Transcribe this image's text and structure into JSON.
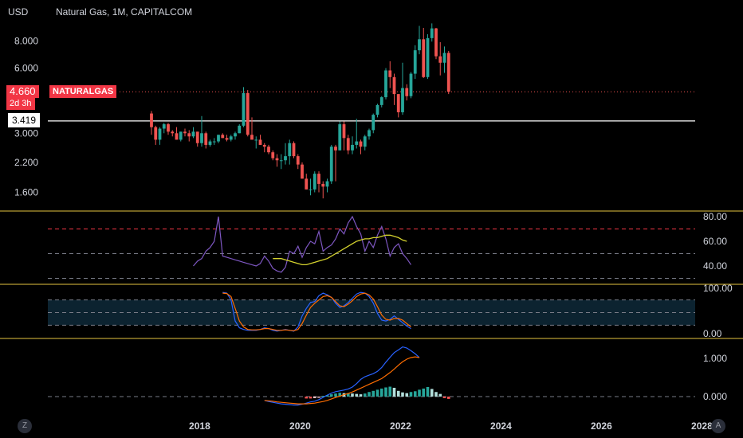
{
  "header": {
    "currency": "USD",
    "title": "Natural Gas, 1M, CAPITALCOM"
  },
  "price_axis": {
    "ticks": [
      "8.000",
      "6.000",
      "3.000",
      "2.200",
      "1.600"
    ],
    "last_price": "4.660",
    "countdown": "2d 3h",
    "symbol_tag": "NATURALGAS",
    "hline_price": "3.419"
  },
  "rsi_axis": {
    "ticks": [
      "80.00",
      "60.00",
      "40.00"
    ]
  },
  "stoch_axis": {
    "ticks": [
      "100.00",
      "0.00"
    ]
  },
  "macd_axis": {
    "ticks": [
      "1.000",
      "0.000"
    ]
  },
  "time_axis": {
    "ticks": [
      "2018",
      "2020",
      "2022",
      "2024",
      "2026",
      "2028"
    ]
  },
  "buttons": {
    "left": "Z",
    "right": "A"
  },
  "colors": {
    "up": "#26a69a",
    "down": "#ef5350",
    "rsi": "#7e57c2",
    "rsi_ma": "#d4d22e",
    "stoch_k": "#2962ff",
    "stoch_d": "#ff6d00",
    "separator": "#e4c441"
  },
  "chart_data": [
    {
      "type": "candlestick",
      "title": "Natural Gas, 1M, CAPITALCOM",
      "ylabel": "USD",
      "scale": "log",
      "x": [
        "2017-01",
        "2017-02",
        "2017-03",
        "2017-04",
        "2017-05",
        "2017-06",
        "2017-07",
        "2017-08",
        "2017-09",
        "2017-10",
        "2017-11",
        "2017-12",
        "2018-01",
        "2018-02",
        "2018-03",
        "2018-04",
        "2018-05",
        "2018-06",
        "2018-07",
        "2018-08",
        "2018-09",
        "2018-10",
        "2018-11",
        "2018-12",
        "2019-01",
        "2019-02",
        "2019-03",
        "2019-04",
        "2019-05",
        "2019-06",
        "2019-07",
        "2019-08",
        "2019-09",
        "2019-10",
        "2019-11",
        "2019-12",
        "2020-01",
        "2020-02",
        "2020-03",
        "2020-04",
        "2020-05",
        "2020-06",
        "2020-07",
        "2020-08",
        "2020-09",
        "2020-10",
        "2020-11",
        "2020-12",
        "2021-01",
        "2021-02",
        "2021-03",
        "2021-04",
        "2021-05",
        "2021-06",
        "2021-07",
        "2021-08",
        "2021-09",
        "2021-10",
        "2021-11",
        "2021-12",
        "2022-01",
        "2022-02",
        "2022-03",
        "2022-04",
        "2022-05",
        "2022-06",
        "2022-07",
        "2022-08",
        "2022-09",
        "2022-10",
        "2022-11",
        "2022-12"
      ],
      "ohlc": [
        [
          3.7,
          3.8,
          2.95,
          3.2
        ],
        [
          3.2,
          3.25,
          2.65,
          2.8
        ],
        [
          2.8,
          3.2,
          2.65,
          3.15
        ],
        [
          3.15,
          3.35,
          3.0,
          3.3
        ],
        [
          3.3,
          3.35,
          2.95,
          3.05
        ],
        [
          3.05,
          3.1,
          2.9,
          3.0
        ],
        [
          3.0,
          3.2,
          2.8,
          2.8
        ],
        [
          2.8,
          3.05,
          2.75,
          3.05
        ],
        [
          3.05,
          3.15,
          2.9,
          3.0
        ],
        [
          3.0,
          3.1,
          2.75,
          2.9
        ],
        [
          2.9,
          3.2,
          2.85,
          3.05
        ],
        [
          3.05,
          3.05,
          2.6,
          2.7
        ],
        [
          2.7,
          3.6,
          2.6,
          3.0
        ],
        [
          3.0,
          3.05,
          2.55,
          2.65
        ],
        [
          2.65,
          2.8,
          2.6,
          2.75
        ],
        [
          2.75,
          2.85,
          2.65,
          2.75
        ],
        [
          2.75,
          2.95,
          2.7,
          2.95
        ],
        [
          2.95,
          3.0,
          2.85,
          2.85
        ],
        [
          2.85,
          2.95,
          2.75,
          2.8
        ],
        [
          2.8,
          2.95,
          2.75,
          2.9
        ],
        [
          2.9,
          3.05,
          2.8,
          3.0
        ],
        [
          3.0,
          3.3,
          3.0,
          3.25
        ],
        [
          3.25,
          4.9,
          3.2,
          4.6
        ],
        [
          4.6,
          4.75,
          2.9,
          2.95
        ],
        [
          2.95,
          3.55,
          2.85,
          2.8
        ],
        [
          2.8,
          2.9,
          2.55,
          2.8
        ],
        [
          2.8,
          2.95,
          2.65,
          2.65
        ],
        [
          2.65,
          2.7,
          2.45,
          2.6
        ],
        [
          2.6,
          2.65,
          2.4,
          2.45
        ],
        [
          2.45,
          2.5,
          2.25,
          2.3
        ],
        [
          2.3,
          2.4,
          2.1,
          2.25
        ],
        [
          2.25,
          2.4,
          2.05,
          2.25
        ],
        [
          2.25,
          2.7,
          2.15,
          2.35
        ],
        [
          2.35,
          2.8,
          2.15,
          2.7
        ],
        [
          2.7,
          2.75,
          2.3,
          2.35
        ],
        [
          2.35,
          2.4,
          2.05,
          2.15
        ],
        [
          2.15,
          2.2,
          1.85,
          1.85
        ],
        [
          1.85,
          1.95,
          1.65,
          1.65
        ],
        [
          1.65,
          1.85,
          1.55,
          1.65
        ],
        [
          1.65,
          2.0,
          1.6,
          1.95
        ],
        [
          1.95,
          2.0,
          1.6,
          1.75
        ],
        [
          1.75,
          1.8,
          1.5,
          1.7
        ],
        [
          1.7,
          1.85,
          1.6,
          1.8
        ],
        [
          1.8,
          2.65,
          1.75,
          2.6
        ],
        [
          2.6,
          2.65,
          1.8,
          2.5
        ],
        [
          2.5,
          3.4,
          2.5,
          3.3
        ],
        [
          3.3,
          3.4,
          2.5,
          2.85
        ],
        [
          2.85,
          2.95,
          2.4,
          2.5
        ],
        [
          2.5,
          2.9,
          2.4,
          2.65
        ],
        [
          2.65,
          3.5,
          2.55,
          2.75
        ],
        [
          2.75,
          2.8,
          2.4,
          2.6
        ],
        [
          2.6,
          2.95,
          2.5,
          2.9
        ],
        [
          2.9,
          3.15,
          2.8,
          3.1
        ],
        [
          3.1,
          3.7,
          3.0,
          3.65
        ],
        [
          3.65,
          4.1,
          3.55,
          4.05
        ],
        [
          4.05,
          4.45,
          3.95,
          4.4
        ],
        [
          4.4,
          6.0,
          4.3,
          5.85
        ],
        [
          5.85,
          6.45,
          4.85,
          5.45
        ],
        [
          5.45,
          5.65,
          4.05,
          4.55
        ],
        [
          4.55,
          4.55,
          3.55,
          3.75
        ],
        [
          3.75,
          6.35,
          3.65,
          4.85
        ],
        [
          4.85,
          5.05,
          4.25,
          4.45
        ],
        [
          4.45,
          5.75,
          4.35,
          5.65
        ],
        [
          5.65,
          7.65,
          5.35,
          7.25
        ],
        [
          7.25,
          9.4,
          6.95,
          8.15
        ],
        [
          8.15,
          9.2,
          5.4,
          5.45
        ],
        [
          5.45,
          8.6,
          5.35,
          8.25
        ],
        [
          8.25,
          9.65,
          7.95,
          9.15
        ],
        [
          9.15,
          9.2,
          6.6,
          6.8
        ],
        [
          6.8,
          7.9,
          5.55,
          6.35
        ],
        [
          6.35,
          7.55,
          5.7,
          7.05
        ],
        [
          7.05,
          7.2,
          4.55,
          4.66
        ]
      ],
      "last_price": 4.66,
      "horizontal_line": 3.419,
      "y_ticks": [
        8.0,
        6.0,
        3.0,
        2.2,
        1.6
      ]
    },
    {
      "type": "line",
      "name": "RSI",
      "ylim": [
        25,
        85
      ],
      "y_ticks": [
        80,
        60,
        40
      ],
      "bands": [
        70,
        50,
        30
      ],
      "series": [
        {
          "name": "RSI",
          "x_start": "2017-11",
          "values": [
            40,
            44,
            46,
            52,
            55,
            60,
            80,
            48,
            47,
            46,
            45,
            44,
            43,
            42,
            41,
            40,
            42,
            48,
            44,
            38,
            36,
            35,
            39,
            52,
            50,
            56,
            47,
            55,
            60,
            58,
            68,
            52,
            55,
            57,
            62,
            70,
            66,
            75,
            80,
            72,
            66,
            52,
            60,
            55,
            65,
            72,
            62,
            48,
            55,
            58,
            50,
            46,
            41
          ]
        },
        {
          "name": "RSI-based MA",
          "x_start": "2019-06",
          "values": [
            46,
            46,
            46,
            45,
            44,
            43,
            42,
            41,
            41,
            42,
            43,
            44,
            45,
            46,
            48,
            50,
            52,
            54,
            56,
            58,
            60,
            61,
            62,
            62,
            63,
            63,
            64,
            65,
            65,
            64,
            63,
            61,
            60
          ]
        }
      ]
    },
    {
      "type": "line",
      "name": "Stochastic",
      "ylim": [
        -5,
        110
      ],
      "y_ticks": [
        100,
        0
      ],
      "bands": [
        80,
        50,
        20
      ],
      "series": [
        {
          "name": "%K",
          "x_start": "2018-06",
          "values": [
            98,
            96,
            80,
            30,
            14,
            10,
            8,
            8,
            8,
            10,
            14,
            12,
            8,
            6,
            8,
            10,
            8,
            6,
            16,
            42,
            60,
            74,
            76,
            90,
            96,
            92,
            86,
            72,
            62,
            66,
            74,
            84,
            94,
            98,
            96,
            88,
            72,
            48,
            32,
            30,
            34,
            42,
            34,
            26,
            18,
            12
          ]
        },
        {
          "name": "%D",
          "x_start": "2018-06",
          "values": [
            96,
            95,
            88,
            60,
            30,
            16,
            10,
            9,
            9,
            10,
            12,
            12,
            10,
            8,
            8,
            9,
            8,
            7,
            10,
            24,
            44,
            62,
            72,
            80,
            88,
            90,
            86,
            76,
            66,
            64,
            70,
            78,
            88,
            94,
            96,
            92,
            82,
            64,
            44,
            34,
            32,
            36,
            36,
            32,
            24,
            16
          ]
        }
      ]
    },
    {
      "type": "bar+line",
      "name": "MACD",
      "ylim": [
        -0.35,
        1.45
      ],
      "y_ticks": [
        1.0,
        0.0
      ],
      "series": [
        {
          "name": "MACD",
          "x_start": "2019-04",
          "values": [
            -0.1,
            -0.13,
            -0.15,
            -0.17,
            -0.19,
            -0.2,
            -0.21,
            -0.22,
            -0.22,
            -0.2,
            -0.17,
            -0.14,
            -0.12,
            -0.08,
            -0.02,
            0.04,
            0.09,
            0.13,
            0.15,
            0.17,
            0.2,
            0.25,
            0.34,
            0.45,
            0.52,
            0.56,
            0.6,
            0.66,
            0.76,
            0.9,
            1.03,
            1.15,
            1.22,
            1.3,
            1.27,
            1.2,
            1.12,
            1.02
          ]
        },
        {
          "name": "Signal",
          "x_start": "2019-04",
          "values": [
            -0.1,
            -0.11,
            -0.12,
            -0.14,
            -0.15,
            -0.16,
            -0.17,
            -0.18,
            -0.19,
            -0.19,
            -0.19,
            -0.18,
            -0.17,
            -0.15,
            -0.13,
            -0.1,
            -0.06,
            -0.02,
            0.01,
            0.05,
            0.08,
            0.12,
            0.17,
            0.22,
            0.27,
            0.32,
            0.37,
            0.42,
            0.47,
            0.55,
            0.63,
            0.72,
            0.82,
            0.91,
            0.98,
            1.02,
            1.04,
            1.02
          ]
        },
        {
          "name": "Histogram",
          "x_start": "2020-02",
          "values": [
            -0.05,
            -0.05,
            -0.04,
            -0.03,
            0.02,
            0.04,
            0.06,
            0.08,
            0.1,
            0.09,
            0.09,
            0.08,
            0.07,
            0.06,
            0.08,
            0.12,
            0.15,
            0.18,
            0.21,
            0.24,
            0.26,
            0.23,
            0.15,
            0.11,
            0.09,
            0.12,
            0.14,
            0.18,
            0.21,
            0.25,
            0.2,
            0.12,
            0.07,
            -0.04,
            -0.06
          ]
        }
      ]
    }
  ]
}
